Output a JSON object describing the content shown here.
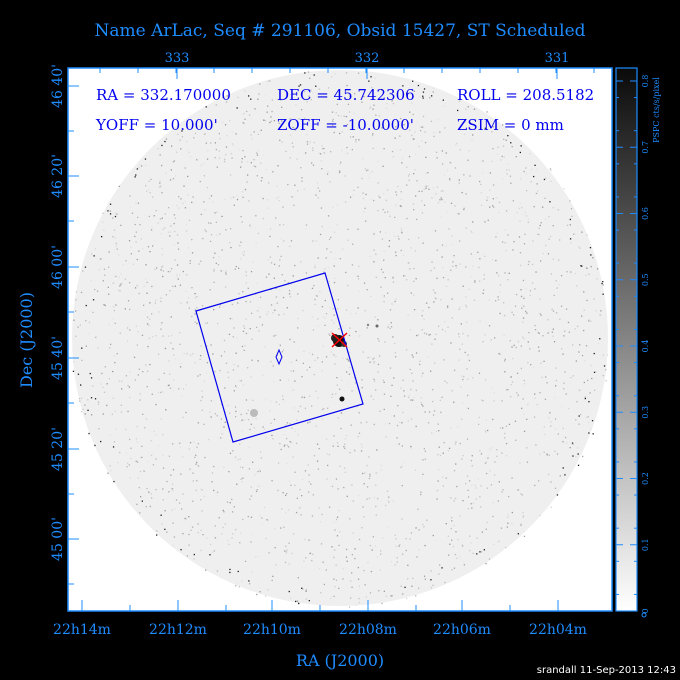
{
  "chart_data": {
    "type": "heatmap",
    "title": "Name ArLac, Seq # 291106, Obsid 15427, ST Scheduled",
    "xlabel": "RA (J2000)",
    "ylabel": "Dec (J2000)",
    "x_ticks": [
      "22h14m",
      "22h12m",
      "22h10m",
      "22h08m",
      "22h06m",
      "22h04m"
    ],
    "y_ticks": [
      "45 00'",
      "45 20'",
      "45 40'",
      "46 00'",
      "46 20'",
      "46 40'"
    ],
    "top_ticks": [
      "333",
      "332",
      "331"
    ],
    "colorbar": {
      "label": "PSPC cts/s/pixel",
      "ticks": [
        "0",
        "0.1",
        "0.2",
        "0.3",
        "0.4",
        "0.5",
        "0.6",
        "0.7",
        "0.8"
      ],
      "range": [
        0,
        0.8
      ],
      "colormap": "white-to-black"
    },
    "annotations": {
      "ra": "RA = 332.170000",
      "dec": "DEC = 45.742306",
      "roll": "ROLL = 208.5182",
      "yoff": "YOFF =  10.000'",
      "zoff": "ZOFF = -10.0000'",
      "zsim": "ZSIM = 0 mm"
    },
    "overlay_color": "#0000ee",
    "target_marker_color": "#ff0000",
    "axis_color": "#1e8cff"
  },
  "footer": {
    "stamp": "srandall 11-Sep-2013 12:43"
  }
}
